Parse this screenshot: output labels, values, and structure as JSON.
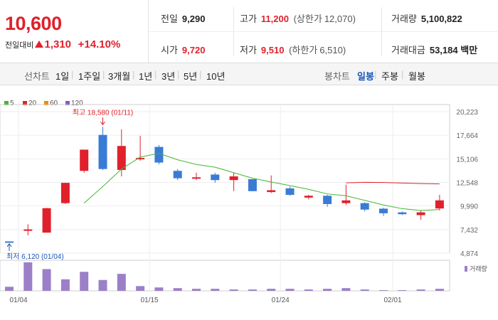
{
  "quote": {
    "price": "10,600",
    "change_label": "전일대비",
    "change_value": "1,310",
    "change_pct": "+14.10%"
  },
  "info": {
    "prev_close_k": "전일",
    "prev_close_v": "9,290",
    "high_k": "고가",
    "high_v": "11,200",
    "high_limit_k": "(상한가",
    "high_limit_v": "12,070)",
    "volume_k": "거래량",
    "volume_v": "5,100,822",
    "open_k": "시가",
    "open_v": "9,720",
    "low_k": "저가",
    "low_v": "9,510",
    "low_limit_k": "(하한가",
    "low_limit_v": "6,510)",
    "amount_k": "거래대금",
    "amount_v": "53,184",
    "amount_unit": "백만"
  },
  "tabs": {
    "line_label": "선차트",
    "line_items": [
      "1일",
      "1주일",
      "3개월",
      "1년",
      "3년",
      "5년",
      "10년"
    ],
    "candle_label": "봉차트",
    "candle_items": [
      "일봉",
      "주봉",
      "월봉"
    ],
    "active_candle": "일봉"
  },
  "legend": [
    {
      "label": "5",
      "color": "#41b534"
    },
    {
      "label": "20",
      "color": "#e0202b"
    },
    {
      "label": "60",
      "color": "#f08a00"
    },
    {
      "label": "120",
      "color": "#8b55c8"
    }
  ],
  "colors": {
    "up": "#e0202b",
    "down": "#3a7bd5",
    "ma5": "#41b534",
    "ma20": "#e0202b",
    "volume": "#9b80c8"
  },
  "chart_data": {
    "type": "candlestick",
    "y_ticks": [
      "20,223",
      "17,664",
      "15,106",
      "12,548",
      "9,990",
      "7,432",
      "4,874"
    ],
    "ylim": [
      4874,
      20223
    ],
    "x_ticks": [
      "01/04",
      "01/15",
      "01/24",
      "02/01"
    ],
    "x_tick_index": [
      0,
      7,
      14,
      20
    ],
    "volume_label": "거래량",
    "annotations": {
      "max_label": "최고 18,580 (01/11)",
      "max_value": 18580,
      "max_index": 5,
      "min_label": "최저 6,120 (01/04)",
      "min_value": 6120,
      "min_index": 0
    },
    "candles": [
      {
        "o": 6150,
        "h": 6150,
        "l": 6120,
        "c": 6120,
        "v": 0.06
      },
      {
        "o": 7450,
        "h": 8000,
        "l": 6800,
        "c": 7450,
        "v": 0.42
      },
      {
        "o": 7100,
        "h": 9800,
        "l": 7100,
        "c": 9750,
        "v": 0.32
      },
      {
        "o": 10300,
        "h": 12500,
        "l": 10200,
        "c": 12500,
        "v": 0.17
      },
      {
        "o": 13800,
        "h": 16100,
        "l": 13600,
        "c": 16100,
        "v": 0.28
      },
      {
        "o": 17700,
        "h": 18580,
        "l": 13900,
        "c": 14000,
        "v": 0.16
      },
      {
        "o": 13900,
        "h": 18300,
        "l": 13200,
        "c": 16500,
        "v": 0.25
      },
      {
        "o": 15200,
        "h": 17600,
        "l": 14900,
        "c": 15200,
        "v": 0.07
      },
      {
        "o": 16400,
        "h": 16600,
        "l": 14500,
        "c": 14700,
        "v": 0.05
      },
      {
        "o": 13800,
        "h": 14000,
        "l": 12800,
        "c": 13000,
        "v": 0.04
      },
      {
        "o": 13000,
        "h": 13600,
        "l": 12800,
        "c": 13100,
        "v": 0.03
      },
      {
        "o": 13400,
        "h": 13600,
        "l": 12500,
        "c": 12800,
        "v": 0.03
      },
      {
        "o": 12800,
        "h": 13600,
        "l": 11600,
        "c": 13200,
        "v": 0.02
      },
      {
        "o": 12900,
        "h": 12900,
        "l": 11600,
        "c": 11600,
        "v": 0.02
      },
      {
        "o": 11500,
        "h": 13300,
        "l": 11400,
        "c": 11700,
        "v": 0.03
      },
      {
        "o": 11900,
        "h": 12100,
        "l": 11100,
        "c": 11200,
        "v": 0.03
      },
      {
        "o": 10900,
        "h": 11200,
        "l": 10700,
        "c": 11100,
        "v": 0.02
      },
      {
        "o": 11100,
        "h": 11200,
        "l": 9900,
        "c": 10200,
        "v": 0.03
      },
      {
        "o": 10300,
        "h": 12300,
        "l": 10100,
        "c": 10600,
        "v": 0.04
      },
      {
        "o": 10300,
        "h": 10400,
        "l": 9400,
        "c": 9600,
        "v": 0.02
      },
      {
        "o": 9700,
        "h": 9800,
        "l": 8900,
        "c": 9200,
        "v": 0.01
      },
      {
        "o": 9300,
        "h": 9400,
        "l": 9000,
        "c": 9100,
        "v": 0.01
      },
      {
        "o": 9000,
        "h": 9500,
        "l": 8500,
        "c": 9300,
        "v": 0.02
      },
      {
        "o": 9720,
        "h": 11200,
        "l": 9510,
        "c": 10600,
        "v": 0.03
      }
    ],
    "ma5": [
      null,
      null,
      null,
      null,
      10300,
      12100,
      14000,
      15300,
      15700,
      15000,
      14500,
      14200,
      13600,
      13000,
      12600,
      12200,
      11800,
      11300,
      11100,
      10600,
      10100,
      9700,
      9500,
      9600
    ],
    "ma20": [
      null,
      null,
      null,
      null,
      null,
      null,
      null,
      null,
      null,
      null,
      null,
      null,
      null,
      null,
      null,
      null,
      null,
      null,
      12500,
      12560,
      12540,
      12480,
      12420,
      12380
    ]
  }
}
